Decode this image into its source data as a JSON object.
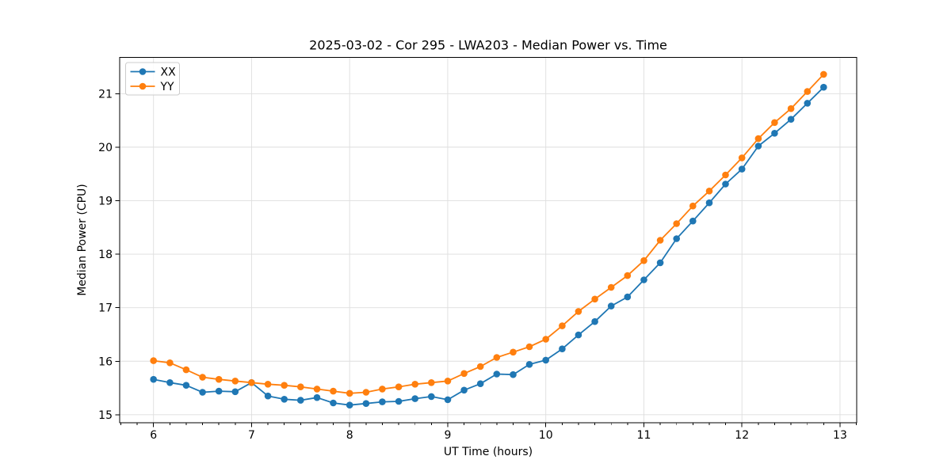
{
  "chart_data": {
    "type": "line",
    "title": "2025-03-02 - Cor 295 - LWA203 - Median Power vs. Time",
    "xlabel": "UT Time (hours)",
    "ylabel": "Median Power (CPU)",
    "xlim": [
      5.655,
      13.17
    ],
    "ylim": [
      14.85,
      21.68
    ],
    "xticks": [
      6,
      7,
      8,
      9,
      10,
      11,
      12,
      13
    ],
    "yticks": [
      15,
      16,
      17,
      18,
      19,
      20,
      21
    ],
    "x_minor_step": 0.1666667,
    "grid": true,
    "grid_color": "#dedede",
    "legend": {
      "position": "upper-left",
      "entries": [
        {
          "label": "XX",
          "color": "#1f77b4"
        },
        {
          "label": "YY",
          "color": "#ff7f0e"
        }
      ]
    },
    "x": [
      6.0,
      6.167,
      6.333,
      6.5,
      6.667,
      6.833,
      7.0,
      7.167,
      7.333,
      7.5,
      7.667,
      7.833,
      8.0,
      8.167,
      8.333,
      8.5,
      8.667,
      8.833,
      9.0,
      9.167,
      9.333,
      9.5,
      9.667,
      9.833,
      10.0,
      10.167,
      10.333,
      10.5,
      10.667,
      10.833,
      11.0,
      11.167,
      11.333,
      11.5,
      11.667,
      11.833,
      12.0,
      12.167,
      12.333,
      12.5,
      12.667,
      12.833
    ],
    "series": [
      {
        "name": "XX",
        "color": "#1f77b4",
        "values": [
          15.66,
          15.6,
          15.55,
          15.42,
          15.44,
          15.43,
          15.6,
          15.35,
          15.29,
          15.27,
          15.32,
          15.22,
          15.18,
          15.21,
          15.24,
          15.25,
          15.3,
          15.34,
          15.28,
          15.46,
          15.58,
          15.76,
          15.75,
          15.94,
          16.02,
          16.23,
          16.49,
          16.74,
          17.03,
          17.2,
          17.52,
          17.84,
          18.29,
          18.62,
          18.96,
          19.31,
          19.59,
          20.02,
          20.26,
          20.52,
          20.82,
          21.12
        ]
      },
      {
        "name": "YY",
        "color": "#ff7f0e",
        "values": [
          16.01,
          15.97,
          15.84,
          15.7,
          15.66,
          15.63,
          15.6,
          15.57,
          15.55,
          15.52,
          15.48,
          15.44,
          15.4,
          15.42,
          15.48,
          15.52,
          15.57,
          15.6,
          15.63,
          15.77,
          15.9,
          16.07,
          16.17,
          16.27,
          16.41,
          16.66,
          16.93,
          17.16,
          17.38,
          17.6,
          17.88,
          18.26,
          18.57,
          18.9,
          19.18,
          19.48,
          19.8,
          20.16,
          20.46,
          20.72,
          21.04,
          21.36
        ]
      }
    ],
    "marker": "circle",
    "marker_radius": 4.3,
    "line_width": 1.8
  }
}
